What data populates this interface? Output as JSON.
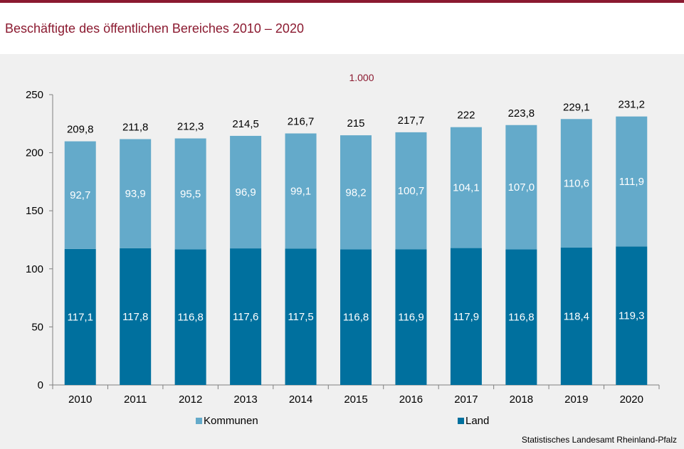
{
  "title": "Beschäftigte des öffentlichen Bereiches 2010 – 2020",
  "source": "Statistisches Landesamt Rheinland-Pfalz",
  "chart_data": {
    "type": "bar",
    "stacked": true,
    "unit_label": "1.000",
    "categories": [
      "2010",
      "2011",
      "2012",
      "2013",
      "2014",
      "2015",
      "2016",
      "2017",
      "2018",
      "2019",
      "2020"
    ],
    "series": [
      {
        "name": "Land",
        "color": "#00709e",
        "values": [
          117.1,
          117.8,
          116.8,
          117.6,
          117.5,
          116.8,
          116.9,
          117.9,
          116.8,
          118.4,
          119.3
        ],
        "labels": [
          "117,1",
          "117,8",
          "116,8",
          "117,6",
          "117,5",
          "116,8",
          "116,9",
          "117,9",
          "116,8",
          "118,4",
          "119,3"
        ]
      },
      {
        "name": "Kommunen",
        "color": "#64aaca",
        "values": [
          92.7,
          93.9,
          95.5,
          96.9,
          99.1,
          98.2,
          100.7,
          104.1,
          107.0,
          110.6,
          111.9
        ],
        "labels": [
          "92,7",
          "93,9",
          "95,5",
          "96,9",
          "99,1",
          "98,2",
          "100,7",
          "104,1",
          "107,0",
          "110,6",
          "111,9"
        ]
      }
    ],
    "totals": [
      209.8,
      211.8,
      212.3,
      214.5,
      216.7,
      215,
      217.7,
      222,
      223.8,
      229.1,
      231.2
    ],
    "total_labels": [
      "209,8",
      "211,8",
      "212,3",
      "214,5",
      "216,7",
      "215",
      "217,7",
      "222",
      "223,8",
      "229,1",
      "231,2"
    ],
    "ylim": [
      0,
      250
    ],
    "yticks": [
      0,
      50,
      100,
      150,
      200,
      250
    ],
    "legend": [
      "Kommunen",
      "Land"
    ],
    "legend_position": "bottom",
    "grid": false
  }
}
